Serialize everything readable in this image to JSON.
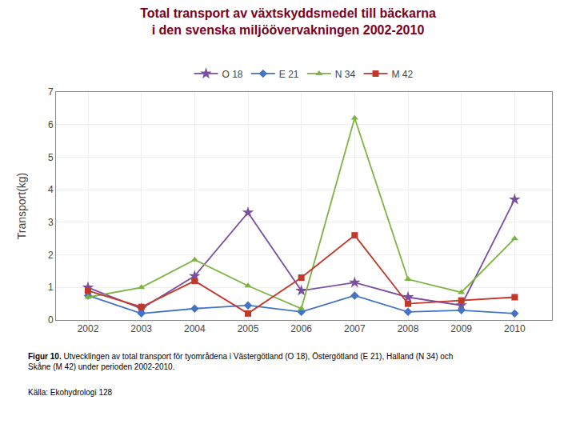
{
  "chart_data": {
    "type": "line",
    "title": "Total transport av växtskyddsmedel till bäckarna\ni den svenska miljöövervakningen 2002-2010",
    "y_label": "Transport(kg)",
    "x": [
      2002,
      2003,
      2004,
      2005,
      2006,
      2007,
      2008,
      2009,
      2010
    ],
    "series": [
      {
        "name": "O 18",
        "color": "#7B4EA0",
        "marker": "star",
        "values": [
          1.0,
          0.35,
          1.35,
          3.3,
          0.9,
          1.15,
          0.7,
          0.45,
          3.7
        ]
      },
      {
        "name": "E 21",
        "color": "#4472C4",
        "marker": "diamond",
        "values": [
          0.75,
          0.2,
          0.35,
          0.45,
          0.25,
          0.75,
          0.25,
          0.3,
          0.2
        ]
      },
      {
        "name": "N 34",
        "color": "#7CB342",
        "marker": "triangle-up",
        "values": [
          0.7,
          1.0,
          1.85,
          1.05,
          0.35,
          6.2,
          1.25,
          0.85,
          2.5
        ]
      },
      {
        "name": "M 42",
        "color": "#C0392B",
        "marker": "square",
        "values": [
          0.9,
          0.4,
          1.2,
          0.2,
          1.3,
          2.6,
          0.5,
          0.6,
          0.7
        ]
      }
    ],
    "xlim": [
      2001.4,
      2010.7
    ],
    "xticks": [
      2002,
      2003,
      2004,
      2005,
      2006,
      2007,
      2008,
      2009,
      2010
    ],
    "ylim": [
      0,
      7
    ],
    "yticks": [
      0,
      1,
      2,
      3,
      4,
      5,
      6,
      7
    ],
    "grid": true,
    "legend": "top",
    "annotations": [
      "Figur 10.",
      "Utvecklingen av total transport för tyområdena i Västergötland (O 18), Östergötland (E 21), Halland (N 34) och\nSkåne (M 42) under perioden 2002-2010.",
      "Källa: Ekohydrologi 128"
    ]
  }
}
